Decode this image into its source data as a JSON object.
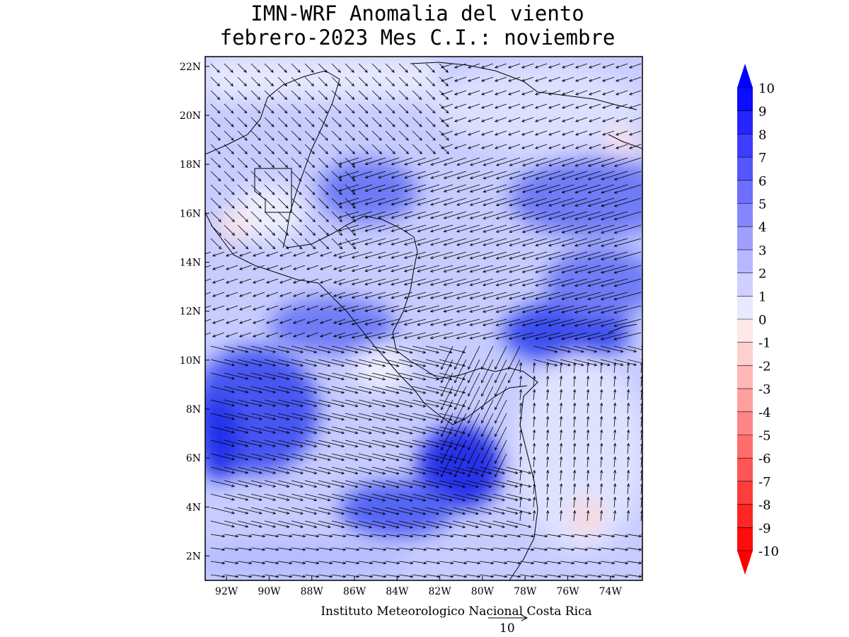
{
  "title": {
    "line1": "IMN-WRF Anomalia del viento",
    "line2": "febrero-2023 Mes C.I.: noviembre"
  },
  "credit": "Instituto Meteorologico Nacional Costa Rica",
  "reference_vector": {
    "label": "10",
    "magnitude": 10
  },
  "axes": {
    "lon_ticks": [
      "92W",
      "90W",
      "88W",
      "86W",
      "84W",
      "82W",
      "80W",
      "78W",
      "76W",
      "74W"
    ],
    "lat_ticks": [
      "22N",
      "20N",
      "18N",
      "16N",
      "14N",
      "12N",
      "10N",
      "8N",
      "6N",
      "4N",
      "2N"
    ],
    "lon_range": [
      -93.0,
      -72.5
    ],
    "lat_range": [
      1.0,
      22.4
    ]
  },
  "colorbar": {
    "labels": [
      "10",
      "9",
      "8",
      "7",
      "6",
      "5",
      "4",
      "3",
      "2",
      "1",
      "0",
      "-1",
      "-2",
      "-3",
      "-4",
      "-5",
      "-6",
      "-7",
      "-8",
      "-9",
      "-10"
    ],
    "positive_color": "#0000ff",
    "negative_color": "#ff0000"
  },
  "colors": {
    "land_outline": "#000000",
    "vector": "#000000"
  }
}
